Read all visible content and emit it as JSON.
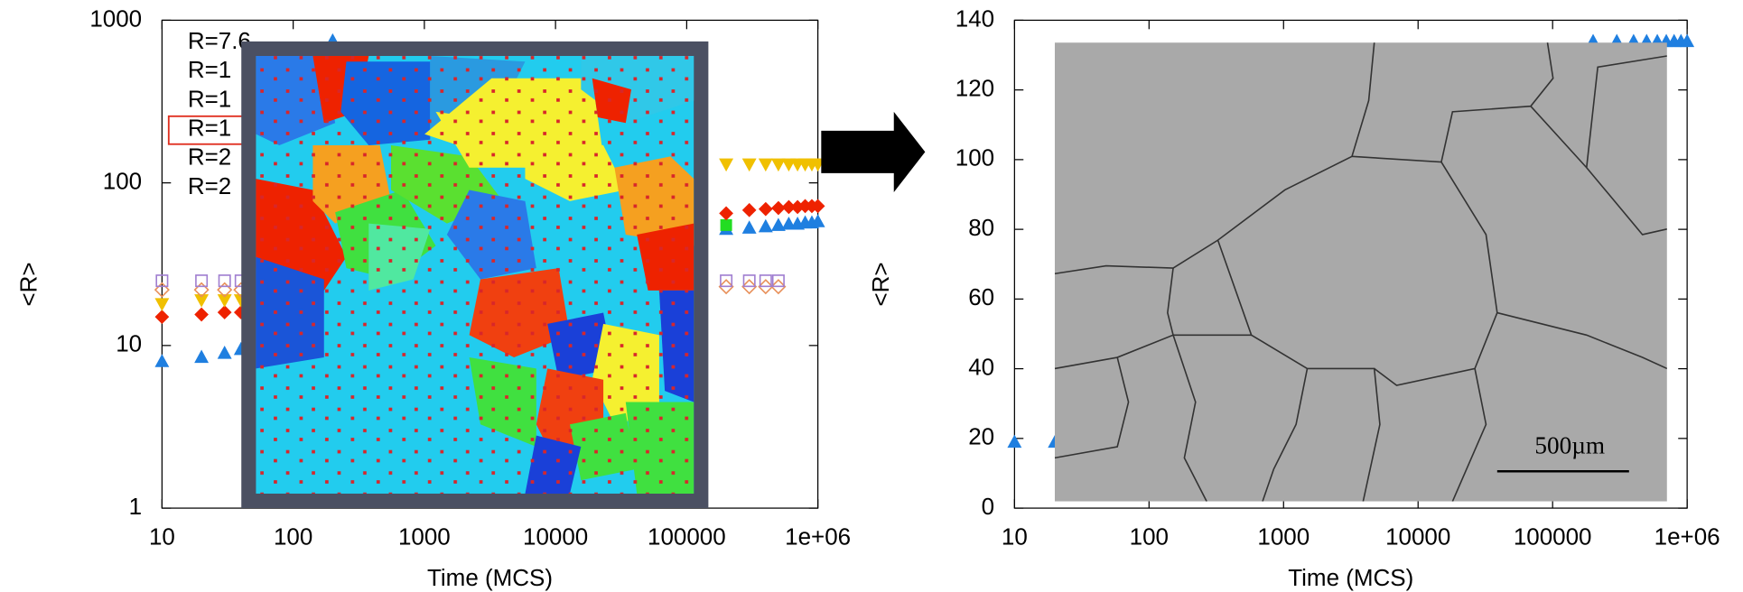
{
  "chart_data": [
    {
      "type": "scatter",
      "xlabel": "Time (MCS)",
      "ylabel": "<R>",
      "xlog": true,
      "ylog": true,
      "xlim": [
        10,
        1000000
      ],
      "ylim": [
        1,
        1000
      ],
      "xticks": [
        10,
        100,
        1000,
        10000,
        100000,
        {
          "value": 1000000,
          "label": "1e+06"
        }
      ],
      "yticks": [
        1,
        10,
        100,
        1000
      ],
      "series": [
        {
          "name": "R=7.6",
          "color": "#1f7fe0",
          "marker": "triangle-up",
          "filled": true,
          "x": [
            10,
            20,
            30,
            40,
            200,
            200000,
            300000,
            400000,
            500000,
            600000,
            700000,
            800000,
            900000,
            1000000
          ],
          "values": [
            8,
            8.5,
            9,
            9.5,
            750,
            52,
            53,
            54,
            55,
            56,
            56,
            57,
            57,
            58
          ]
        },
        {
          "name": "R=1",
          "color": "#22dd22",
          "marker": "square",
          "filled": true,
          "x": [
            200000
          ],
          "values": [
            55
          ]
        },
        {
          "name": "R=1",
          "color": "#ee2200",
          "marker": "diamond",
          "filled": true,
          "x": [
            10,
            20,
            30,
            40,
            200000,
            300000,
            400000,
            500000,
            600000,
            700000,
            800000,
            900000,
            1000000
          ],
          "values": [
            15,
            15.5,
            16,
            16,
            65,
            68,
            69,
            70,
            71,
            71,
            72,
            72,
            72
          ]
        },
        {
          "name": "R=1",
          "color": "#f0c000",
          "marker": "triangle-down",
          "filled": true,
          "x": [
            10,
            20,
            30,
            40,
            200000,
            300000,
            400000,
            500000,
            600000,
            700000,
            800000,
            900000,
            1000000
          ],
          "values": [
            18,
            19,
            19,
            19,
            130,
            130,
            130,
            130,
            130,
            130,
            130,
            130,
            130
          ]
        },
        {
          "name": "R=2",
          "color": "#e8905a",
          "marker": "diamond",
          "filled": false,
          "x": [
            10,
            20,
            30,
            40,
            200000,
            300000,
            400000,
            500000
          ],
          "values": [
            22,
            22,
            22,
            22,
            23,
            23,
            23,
            23
          ]
        },
        {
          "name": "R=2",
          "color": "#a07ed0",
          "marker": "square",
          "filled": false,
          "x": [
            10,
            20,
            30,
            40,
            200000,
            300000,
            400000,
            500000
          ],
          "values": [
            25,
            25,
            25,
            25,
            25,
            25,
            25,
            25
          ]
        }
      ]
    },
    {
      "type": "scatter",
      "xlabel": "Time (MCS)",
      "ylabel": "<R>",
      "xlog": true,
      "ylog": false,
      "xlim": [
        10,
        1000000
      ],
      "ylim": [
        0,
        140
      ],
      "xticks": [
        10,
        100,
        1000,
        10000,
        100000,
        {
          "value": 1000000,
          "label": "1e+06"
        }
      ],
      "yticks": [
        0,
        20,
        40,
        60,
        80,
        100,
        120,
        140
      ],
      "scale_bar": "500µm",
      "series": [
        {
          "color": "#1f7fe0",
          "marker": "triangle-up",
          "filled": true,
          "x": [
            10,
            20,
            200000,
            300000,
            400000,
            500000,
            600000,
            700000,
            800000,
            900000,
            1000000
          ],
          "values": [
            19,
            19,
            134,
            134,
            134,
            134,
            134,
            134,
            134,
            134,
            134
          ]
        }
      ]
    }
  ]
}
